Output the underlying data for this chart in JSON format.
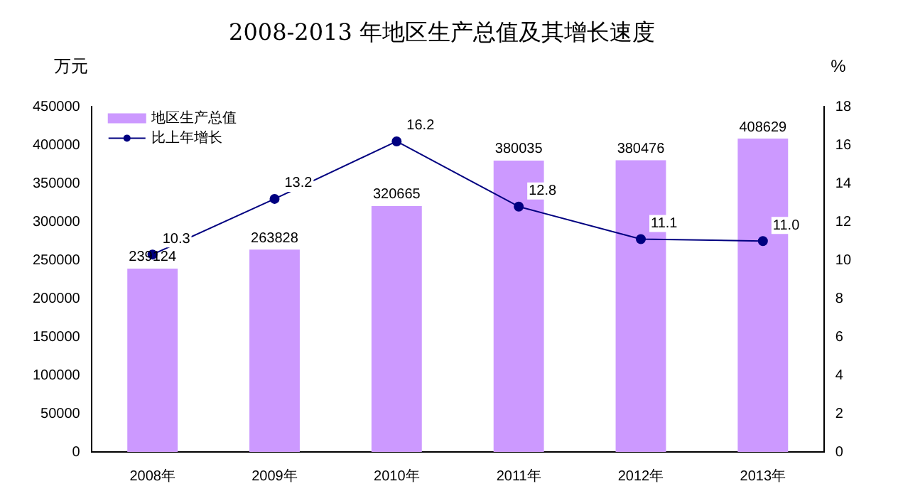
{
  "chart_data": {
    "type": "bar",
    "title": "2008-2013 年地区生产总值及其增长速度",
    "ylabel": "万元",
    "y2label": "%",
    "categories": [
      "2008年",
      "2009年",
      "2010年",
      "2011年",
      "2012年",
      "2013年"
    ],
    "series": [
      {
        "name": "地区生产总值",
        "color": "#cc99ff",
        "values": [
          239124,
          263828,
          320665,
          380035,
          380476,
          408629
        ],
        "value_labels": [
          "239124",
          "263828",
          "320665",
          "380035",
          "380476",
          "408629"
        ]
      },
      {
        "name": "比上年增长",
        "type": "line",
        "axis": "y2",
        "color": "#000080",
        "values": [
          10.3,
          13.2,
          16.2,
          12.8,
          11.1,
          11.0
        ],
        "value_labels": [
          "10.3",
          "13.2",
          "16.2",
          "12.8",
          "11.1",
          "11.0"
        ]
      }
    ],
    "ylim": [
      0,
      450000
    ],
    "yticks": [
      0,
      50000,
      100000,
      150000,
      200000,
      250000,
      300000,
      350000,
      400000,
      450000
    ],
    "y2lim": [
      0,
      18
    ],
    "y2ticks": [
      0,
      2,
      4,
      6,
      8,
      10,
      12,
      14,
      16,
      18
    ],
    "grid": false,
    "legend": "top left",
    "marker": "circle",
    "line_style": "solid"
  }
}
